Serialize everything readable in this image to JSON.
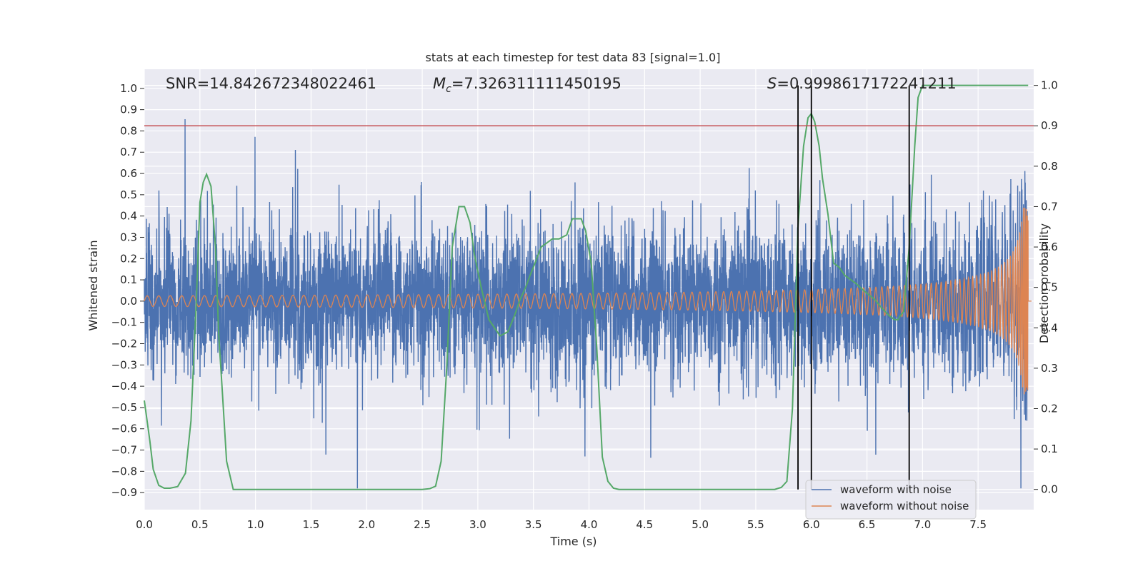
{
  "chart_data": {
    "type": "line",
    "title": "stats at each timestep for test data 83 [signal=1.0]",
    "xlabel": "Time (s)",
    "ylabel": "Whitened strain",
    "ylabel_right": "Detection probability",
    "xlim": [
      0.0,
      8.0
    ],
    "ylim": [
      -0.98,
      1.09
    ],
    "ylim_right": [
      -0.05,
      1.04
    ],
    "x_ticks": [
      "0.0",
      "0.5",
      "1.0",
      "1.5",
      "2.0",
      "2.5",
      "3.0",
      "3.5",
      "4.0",
      "4.5",
      "5.0",
      "5.5",
      "6.0",
      "6.5",
      "7.0",
      "7.5"
    ],
    "y_ticks": [
      "1.0",
      "0.9",
      "0.8",
      "0.7",
      "0.6",
      "0.5",
      "0.4",
      "0.3",
      "0.2",
      "0.1",
      "0.0",
      "−0.1",
      "−0.2",
      "−0.3",
      "−0.4",
      "−0.5",
      "−0.6",
      "−0.7",
      "−0.8",
      "−0.9"
    ],
    "y_ticks_right": [
      "1.0",
      "0.9",
      "0.8",
      "0.7",
      "0.6",
      "0.5",
      "0.4",
      "0.3",
      "0.2",
      "0.1",
      "0.0"
    ],
    "annotations": {
      "snr": "SNR=14.842672348022461",
      "mc_prefix": "M",
      "mc_sub": "c",
      "mc_value": "=7.326311111450195",
      "s_prefix": "S",
      "s_value": "=0.9998617172241211"
    },
    "threshold_line": 0.9,
    "vertical_lines": [
      5.88,
      6.0,
      6.88
    ],
    "series": [
      {
        "name": "waveform with noise",
        "color": "#4c72b0",
        "envelope_abs_max": 0.88
      },
      {
        "name": "waveform without noise",
        "color": "#dd8452",
        "start_amplitude": 0.025,
        "peak_amplitude": 0.44,
        "merger_time": 7.95
      },
      {
        "name": "detection probability",
        "color": "#55a868",
        "axis": "right",
        "x": [
          0.0,
          0.05,
          0.08,
          0.13,
          0.18,
          0.23,
          0.3,
          0.37,
          0.42,
          0.47,
          0.5,
          0.53,
          0.56,
          0.6,
          0.64,
          0.67,
          0.7,
          0.74,
          0.8,
          0.85,
          0.9,
          1.0,
          1.5,
          2.0,
          2.5,
          2.57,
          2.62,
          2.67,
          2.72,
          2.77,
          2.83,
          2.88,
          2.93,
          2.97,
          3.03,
          3.1,
          3.15,
          3.2,
          3.27,
          3.33,
          3.38,
          3.43,
          3.47,
          3.5,
          3.57,
          3.67,
          3.73,
          3.8,
          3.85,
          3.93,
          3.97,
          4.02,
          4.07,
          4.12,
          4.17,
          4.22,
          4.27,
          4.5,
          5.0,
          5.5,
          5.67,
          5.73,
          5.78,
          5.83,
          5.88,
          5.93,
          5.97,
          6.0,
          6.03,
          6.07,
          6.1,
          6.15,
          6.2,
          6.25,
          6.3,
          6.4,
          6.48,
          6.57,
          6.63,
          6.7,
          6.75,
          6.78,
          6.8,
          6.83,
          6.88,
          6.93,
          6.96,
          7.0,
          7.5,
          7.95
        ],
        "values": [
          0.22,
          0.12,
          0.05,
          0.01,
          0.003,
          0.003,
          0.007,
          0.04,
          0.17,
          0.48,
          0.71,
          0.76,
          0.78,
          0.75,
          0.6,
          0.38,
          0.25,
          0.07,
          0.0,
          0.0,
          0.0,
          0.0,
          0.0,
          0.0,
          0.0,
          0.002,
          0.008,
          0.07,
          0.3,
          0.6,
          0.7,
          0.7,
          0.66,
          0.58,
          0.5,
          0.42,
          0.4,
          0.38,
          0.39,
          0.43,
          0.47,
          0.5,
          0.53,
          0.55,
          0.6,
          0.62,
          0.62,
          0.63,
          0.67,
          0.67,
          0.64,
          0.56,
          0.35,
          0.08,
          0.02,
          0.003,
          0.0,
          0.0,
          0.0,
          0.0,
          0.0,
          0.005,
          0.02,
          0.2,
          0.65,
          0.85,
          0.92,
          0.93,
          0.91,
          0.85,
          0.77,
          0.68,
          0.56,
          0.55,
          0.53,
          0.51,
          0.49,
          0.47,
          0.45,
          0.43,
          0.42,
          0.42,
          0.43,
          0.44,
          0.6,
          0.85,
          0.97,
          1.0,
          1.0,
          1.0
        ]
      }
    ],
    "legend_position": "lower-right"
  }
}
